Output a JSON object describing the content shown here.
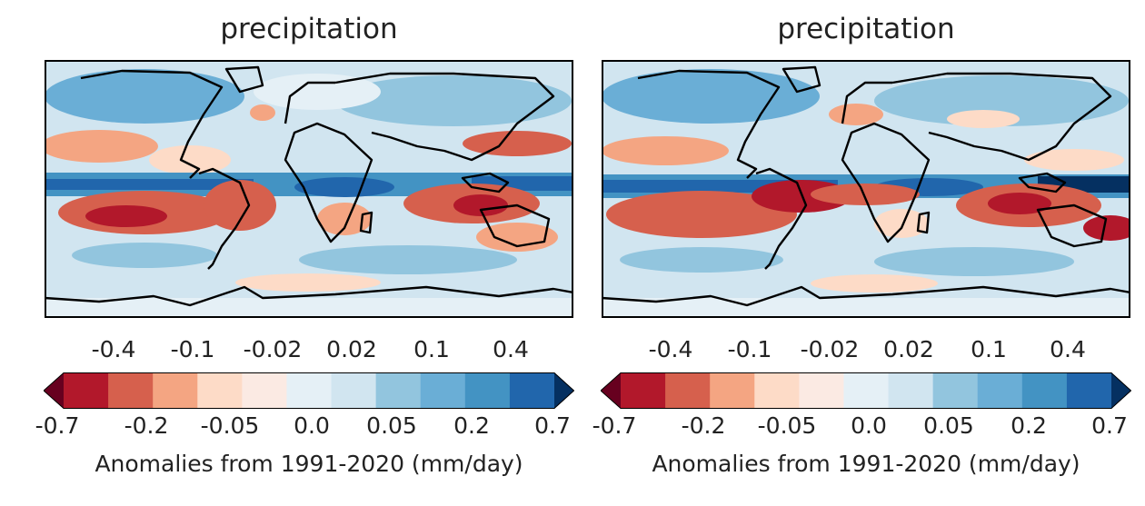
{
  "chart_data": [
    {
      "type": "heatmap",
      "title": "precipitation",
      "variable": "precipitation anomaly",
      "colormap": "red-blue diverging (red = drier, blue = wetter)",
      "colorbar": {
        "label": "Anomalies from 1991-2020 (mm/day)",
        "levels": [
          -0.7,
          -0.4,
          -0.2,
          -0.1,
          -0.05,
          -0.02,
          0.0,
          0.02,
          0.05,
          0.1,
          0.2,
          0.4,
          0.7
        ],
        "ticks_top": [
          "-0.4",
          "-0.1",
          "-0.02",
          "0.02",
          "0.1",
          "0.4"
        ],
        "ticks_bottom": [
          "-0.7",
          "-0.2",
          "-0.05",
          "0.0",
          "0.05",
          "0.2",
          "0.7"
        ],
        "colors": [
          "#67001f",
          "#b2182b",
          "#d6604d",
          "#f4a582",
          "#fddbc7",
          "#fbeae3",
          "#e5f0f6",
          "#d1e5f0",
          "#92c5de",
          "#6aaed6",
          "#4393c3",
          "#2166ac",
          "#053061"
        ],
        "extend": "both",
        "orientation": "horizontal"
      }
    },
    {
      "type": "heatmap",
      "title": "precipitation",
      "variable": "precipitation anomaly",
      "colormap": "red-blue diverging (red = drier, blue = wetter)",
      "colorbar": {
        "label": "Anomalies from 1991-2020 (mm/day)",
        "levels": [
          -0.7,
          -0.4,
          -0.2,
          -0.1,
          -0.05,
          -0.02,
          0.0,
          0.02,
          0.05,
          0.1,
          0.2,
          0.4,
          0.7
        ],
        "ticks_top": [
          "-0.4",
          "-0.1",
          "-0.02",
          "0.02",
          "0.1",
          "0.4"
        ],
        "ticks_bottom": [
          "-0.7",
          "-0.2",
          "-0.05",
          "0.0",
          "0.05",
          "0.2",
          "0.7"
        ],
        "colors": [
          "#67001f",
          "#b2182b",
          "#d6604d",
          "#f4a582",
          "#fddbc7",
          "#fbeae3",
          "#e5f0f6",
          "#d1e5f0",
          "#92c5de",
          "#6aaed6",
          "#4393c3",
          "#2166ac",
          "#053061"
        ],
        "extend": "both",
        "orientation": "horizontal"
      }
    }
  ]
}
